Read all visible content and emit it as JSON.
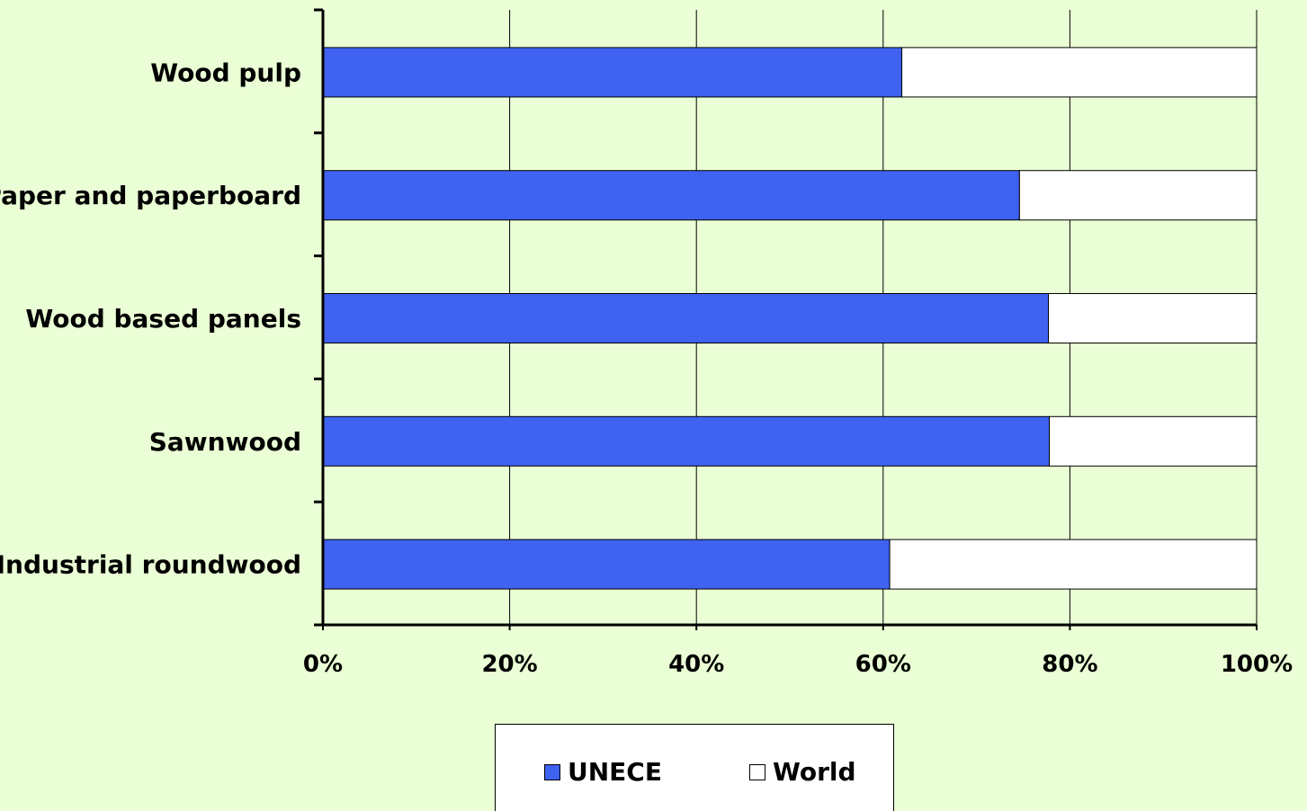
{
  "chart_data": {
    "type": "bar",
    "orientation": "horizontal",
    "stacked": "percent",
    "categories": [
      "Wood pulp",
      "Paper and paperboard",
      "Wood based panels",
      "Sawnwood",
      "Industrial roundwood"
    ],
    "series": [
      {
        "name": "UNECE",
        "values": [
          62,
          74.6,
          77.7,
          77.8,
          60.7
        ],
        "color": "#3f62f0"
      },
      {
        "name": "World",
        "values": [
          38,
          25.4,
          22.3,
          22.2,
          39.3
        ],
        "color": "#ffffff"
      }
    ],
    "x_ticks": [
      "0%",
      "20%",
      "40%",
      "60%",
      "80%",
      "100%"
    ],
    "xlim": [
      0,
      100
    ],
    "grid": "vertical",
    "legend_position": "bottom"
  },
  "legend": {
    "unece_label": "UNECE",
    "world_label": "World"
  },
  "colors": {
    "background": "#eaffd5",
    "unece": "#3f62f0",
    "world": "#ffffff"
  }
}
